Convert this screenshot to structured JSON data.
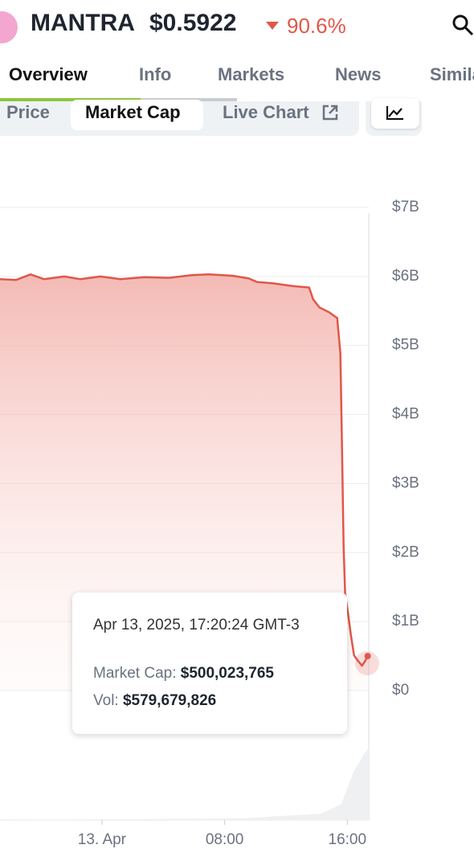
{
  "header": {
    "name": "MANTRA",
    "price": "$0.5922",
    "change": "90.6%"
  },
  "tabs": [
    "Overview",
    "Info",
    "Markets",
    "News",
    "Similar"
  ],
  "subtabs": [
    "Price",
    "Market Cap",
    "Live Chart"
  ],
  "tooltip": {
    "date": "Apr 13, 2025, 17:20:24 GMT-3",
    "rows": [
      {
        "label": "Market Cap:",
        "value": "$500,023,765"
      },
      {
        "label": "Vol:",
        "value": "$579,679,826"
      }
    ]
  },
  "chart_data": {
    "type": "area",
    "color": "#e0574a",
    "grid": true,
    "x": [
      -6.65,
      -5.6,
      -4.66,
      -3.77,
      -2.46,
      -1.41,
      -0.1,
      1.2,
      2.77,
      4.35,
      5.92,
      6.96,
      8.53,
      9.58,
      10.1,
      11.15,
      12.46,
      13.51,
      13.77,
      14.19,
      14.82,
      15.13,
      15.34,
      15.55,
      15.65,
      15.76,
      15.86,
      16.02,
      16.23,
      16.44,
      16.7,
      16.96,
      17.17,
      17.33
    ],
    "values": [
      5.96,
      5.95,
      6.03,
      5.96,
      6.0,
      5.96,
      6.0,
      5.96,
      5.99,
      5.98,
      6.02,
      6.03,
      6.01,
      5.97,
      5.92,
      5.9,
      5.86,
      5.84,
      5.67,
      5.55,
      5.48,
      5.43,
      5.4,
      4.88,
      3.6,
      2.09,
      1.4,
      1.16,
      0.81,
      0.51,
      0.43,
      0.36,
      0.43,
      0.5
    ],
    "xlim": [
      -6.65,
      17.4
    ],
    "xticks": [
      {
        "value": 0,
        "label": "13. Apr"
      },
      {
        "value": 8,
        "label": "08:00"
      },
      {
        "value": 16,
        "label": "16:00"
      }
    ],
    "ylim": [
      0,
      7
    ],
    "yticks": [
      {
        "value": 0,
        "label": "$0"
      },
      {
        "value": 1,
        "label": "$1B"
      },
      {
        "value": 2,
        "label": "$2B"
      },
      {
        "value": 3,
        "label": "$3B"
      },
      {
        "value": 4,
        "label": "$4B"
      },
      {
        "value": 5,
        "label": "$5B"
      },
      {
        "value": 6,
        "label": "$6B"
      },
      {
        "value": 7,
        "label": "$7B"
      }
    ]
  }
}
